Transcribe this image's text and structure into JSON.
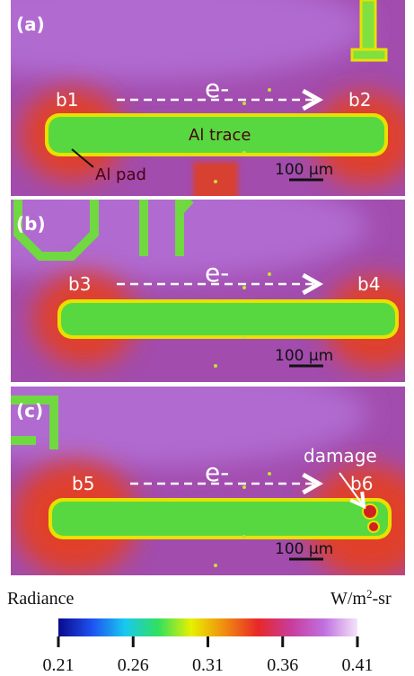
{
  "panels": [
    {
      "label": "(a)",
      "left_pad": "b1",
      "right_pad": "b2",
      "electron": "e-",
      "scale_bar": "100 µm",
      "trace_label": "Al trace",
      "pad_label": "Al pad"
    },
    {
      "label": "(b)",
      "left_pad": "b3",
      "right_pad": "b4",
      "electron": "e-",
      "scale_bar": "100 µm"
    },
    {
      "label": "(c)",
      "left_pad": "b5",
      "right_pad": "b6",
      "electron": "e-",
      "scale_bar": "100 µm",
      "damage_label": "damage"
    }
  ],
  "colorbar": {
    "title": "Radiance",
    "unit": "W/m",
    "unit_sup": "2",
    "unit_suffix": "-sr",
    "range": [
      0.21,
      0.41
    ],
    "ticks": [
      0.21,
      0.26,
      0.31,
      0.36,
      0.41
    ],
    "colors": [
      "#0a0a8c",
      "#1e50f0",
      "#18c8f0",
      "#30e060",
      "#e8f000",
      "#f08c10",
      "#e82828",
      "#c83c9c",
      "#c070e0",
      "#f4e4f8"
    ]
  }
}
